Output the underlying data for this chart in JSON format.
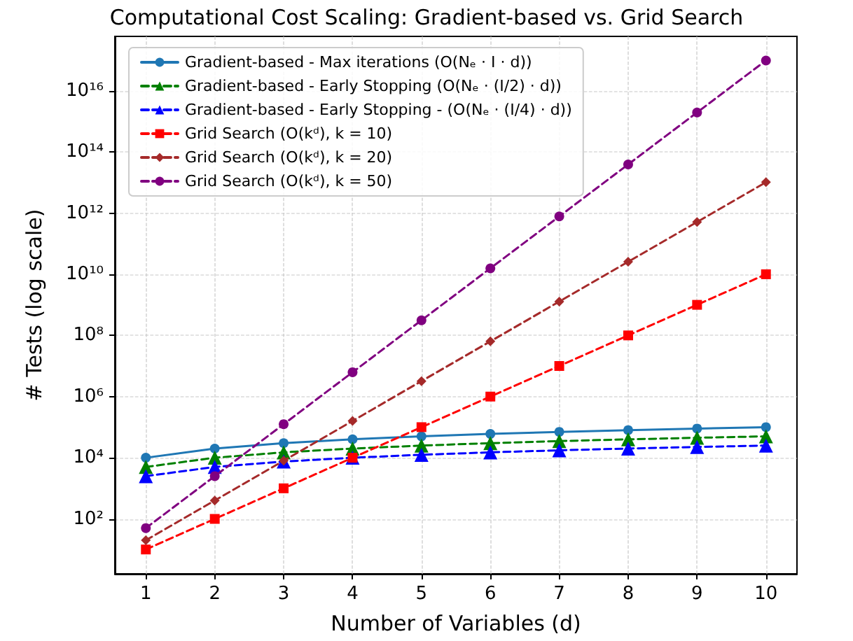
{
  "chart_data": {
    "type": "line",
    "title": "Computational Cost Scaling: Gradient-based vs. Grid Search",
    "xlabel": "Number of Variables (d)",
    "ylabel": "# Tests (log scale)",
    "x": [
      1,
      2,
      3,
      4,
      5,
      6,
      7,
      8,
      9,
      10
    ],
    "series": [
      {
        "name": "Gradient-based - Max iterations (O(Nₑ · I · d))",
        "color": "#1f77b4",
        "marker": "circle",
        "line_style": "solid",
        "values": [
          10000,
          20000,
          30000,
          40000,
          50000,
          60000,
          70000,
          80000,
          90000,
          100000
        ]
      },
      {
        "name": "Gradient-based - Early Stopping (O(Nₑ · (I/2) · d))",
        "color": "#008000",
        "marker": "triangle",
        "line_style": "dashed",
        "values": [
          5000,
          10000,
          15000,
          20000,
          25000,
          30000,
          35000,
          40000,
          45000,
          50000
        ]
      },
      {
        "name": "Gradient-based - Early Stopping - (O(Nₑ · (I/4) · d))",
        "color": "#0000ff",
        "marker": "triangle",
        "line_style": "dashed",
        "values": [
          2500,
          5000,
          7500,
          10000,
          12500,
          15000,
          17500,
          20000,
          22500,
          25000
        ]
      },
      {
        "name": "Grid Search (O(kᵈ), k = 10)",
        "color": "#ff0000",
        "marker": "square",
        "line_style": "dashed",
        "values": [
          10,
          100,
          1000,
          10000,
          100000,
          1000000,
          10000000,
          100000000,
          1000000000,
          10000000000
        ]
      },
      {
        "name": "Grid Search (O(kᵈ), k = 20)",
        "color": "#a52a2a",
        "marker": "diamond",
        "line_style": "dashed",
        "values": [
          20,
          400,
          8000,
          160000,
          3200000,
          64000000,
          1280000000,
          25600000000,
          512000000000,
          10240000000000
        ]
      },
      {
        "name": "Grid Search (O(kᵈ), k = 50)",
        "color": "#800080",
        "marker": "circle",
        "line_style": "dashed",
        "values": [
          50,
          2500,
          125000,
          6250000,
          312500000,
          15625000000,
          781250000000,
          39062500000000,
          1953125000000000,
          97656250000000000
        ]
      }
    ],
    "log": "y",
    "xlim": [
      0.55,
      10.45
    ],
    "xticks": [
      1,
      2,
      3,
      4,
      5,
      6,
      7,
      8,
      9,
      10
    ],
    "ylim": [
      1.6,
      600000000000000000
    ],
    "yticks": [
      {
        "value": 100,
        "label": "10²"
      },
      {
        "value": 10000,
        "label": "10⁴"
      },
      {
        "value": 1000000,
        "label": "10⁶"
      },
      {
        "value": 100000000,
        "label": "10⁸"
      },
      {
        "value": 10000000000,
        "label": "10¹⁰"
      },
      {
        "value": 1000000000000,
        "label": "10¹²"
      },
      {
        "value": 100000000000000,
        "label": "10¹⁴"
      },
      {
        "value": 10000000000000000,
        "label": "10¹⁶"
      }
    ],
    "grid": true,
    "legend": "top left"
  }
}
